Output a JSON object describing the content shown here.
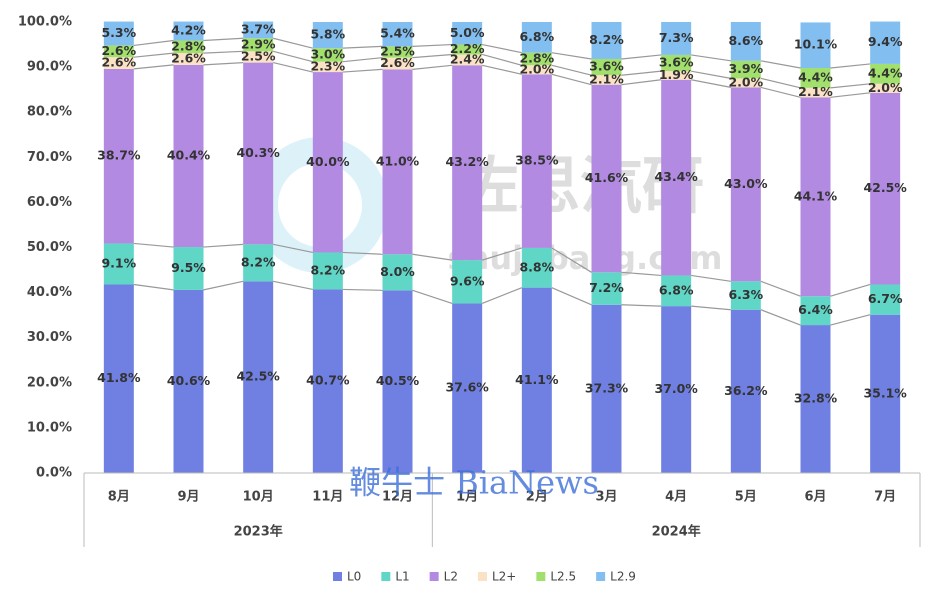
{
  "chart_data": {
    "type": "stacked_bar",
    "categories": [
      "8月",
      "9月",
      "10月",
      "11月",
      "12月",
      "1月",
      "2月",
      "3月",
      "4月",
      "5月",
      "6月",
      "7月"
    ],
    "groups": [
      {
        "label": "2023年",
        "count": 5
      },
      {
        "label": "2024年",
        "count": 7
      }
    ],
    "ylim": [
      0,
      100
    ],
    "yticks": [
      {
        "value": 0,
        "label": "0.0%"
      },
      {
        "value": 10,
        "label": "10.0%"
      },
      {
        "value": 20,
        "label": "20.0%"
      },
      {
        "value": 30,
        "label": "30.0%"
      },
      {
        "value": 40,
        "label": "40.0%"
      },
      {
        "value": 50,
        "label": "50.0%"
      },
      {
        "value": 60,
        "label": "60.0%"
      },
      {
        "value": 70,
        "label": "70.0%"
      },
      {
        "value": 80,
        "label": "80.0%"
      },
      {
        "value": 90,
        "label": "90.0%"
      },
      {
        "value": 100,
        "label": "100.0%"
      }
    ],
    "grid": false,
    "legend": "bottom",
    "series": [
      {
        "name": "L0",
        "color": "#6f80e2",
        "values": [
          41.8,
          40.6,
          42.5,
          40.7,
          40.5,
          37.6,
          41.1,
          37.3,
          37.0,
          36.2,
          32.8,
          35.1
        ],
        "value_labels": [
          "41.8%",
          "40.6%",
          "42.5%",
          "40.7%",
          "40.5%",
          "37.6%",
          "41.1%",
          "37.3%",
          "37.0%",
          "36.2%",
          "32.8%",
          "35.1%"
        ]
      },
      {
        "name": "L1",
        "color": "#5fd6c6",
        "values": [
          9.1,
          9.5,
          8.2,
          8.2,
          8.0,
          9.6,
          8.8,
          7.2,
          6.8,
          6.3,
          6.4,
          6.7
        ],
        "value_labels": [
          "9.1%",
          "9.5%",
          "8.2%",
          "8.2%",
          "8.0%",
          "9.6%",
          "8.8%",
          "7.2%",
          "6.8%",
          "6.3%",
          "6.4%",
          "6.7%"
        ]
      },
      {
        "name": "L2",
        "color": "#b38ae2",
        "values": [
          38.7,
          40.4,
          40.3,
          40.0,
          41.0,
          43.2,
          38.5,
          41.6,
          43.4,
          43.0,
          44.1,
          42.5
        ],
        "value_labels": [
          "38.7%",
          "40.4%",
          "40.3%",
          "40.0%",
          "41.0%",
          "43.2%",
          "38.5%",
          "41.6%",
          "43.4%",
          "43.0%",
          "44.1%",
          "42.5%"
        ]
      },
      {
        "name": "L2+",
        "color": "#fce2c4",
        "values": [
          2.6,
          2.6,
          2.5,
          2.3,
          2.6,
          2.4,
          2.0,
          2.1,
          1.9,
          2.0,
          2.1,
          2.0
        ],
        "value_labels": [
          "2.6%",
          "2.6%",
          "2.5%",
          "2.3%",
          "2.6%",
          "2.4%",
          "2.0%",
          "2.1%",
          "1.9%",
          "2.0%",
          "2.1%",
          "2.0%"
        ]
      },
      {
        "name": "L2.5",
        "color": "#a2e06e",
        "values": [
          2.6,
          2.8,
          2.9,
          3.0,
          2.5,
          2.2,
          2.8,
          3.6,
          3.6,
          3.9,
          4.4,
          4.4
        ],
        "value_labels": [
          "2.6%",
          "2.8%",
          "2.9%",
          "3.0%",
          "2.5%",
          "2.2%",
          "2.8%",
          "3.6%",
          "3.6%",
          "3.9%",
          "4.4%",
          "4.4%"
        ]
      },
      {
        "name": "L2.9",
        "color": "#82bff0",
        "values": [
          5.3,
          4.2,
          3.7,
          5.8,
          5.4,
          5.0,
          6.8,
          8.2,
          7.3,
          8.6,
          10.1,
          9.4
        ],
        "value_labels": [
          "5.3%",
          "4.2%",
          "3.7%",
          "5.8%",
          "5.4%",
          "5.0%",
          "6.8%",
          "8.2%",
          "7.3%",
          "8.6%",
          "10.1%",
          "9.4%"
        ]
      }
    ],
    "watermarks": [
      "佐思汽研",
      "shujubang.com",
      "鞭牛士 BiaNews"
    ]
  }
}
